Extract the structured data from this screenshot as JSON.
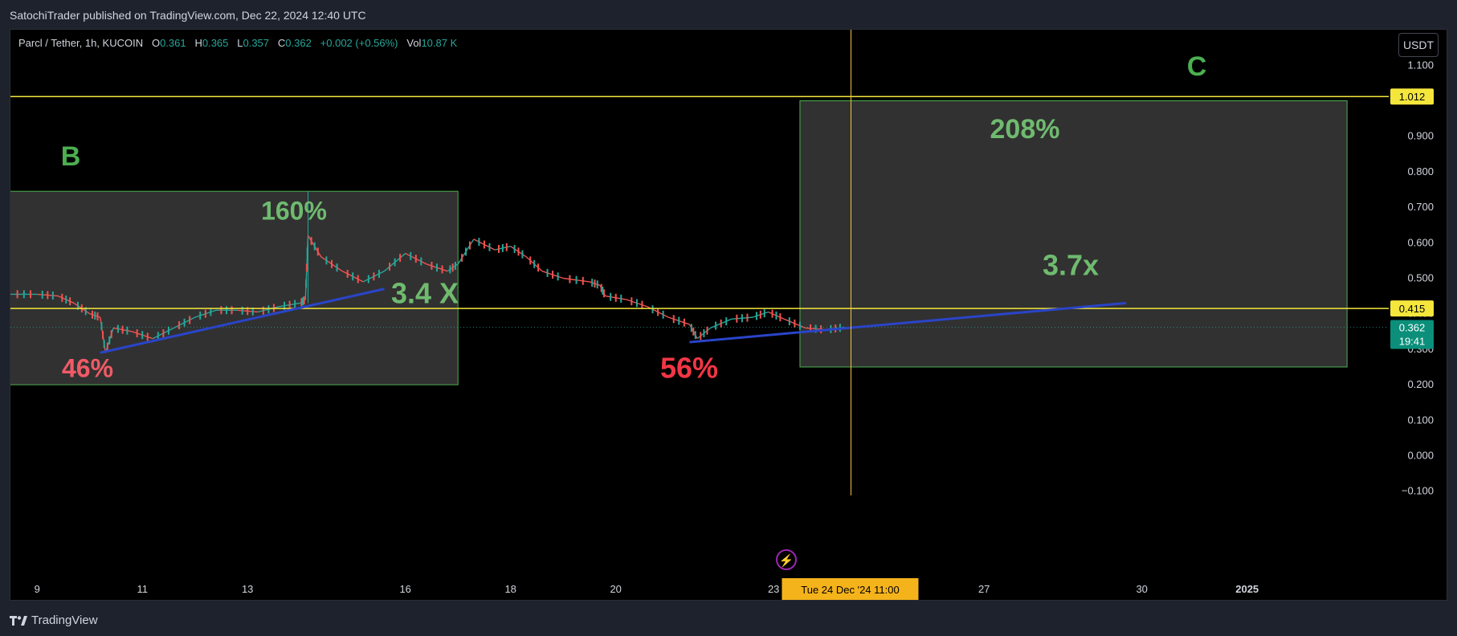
{
  "header": {
    "published": "SatochiTrader published on TradingView.com, Dec 22, 2024 12:40 UTC"
  },
  "legend": {
    "symbol": "Parcl / Tether, 1h, KUCOIN",
    "o_label": "O",
    "o": "0.361",
    "h_label": "H",
    "h": "0.365",
    "l_label": "L",
    "l": "0.357",
    "c_label": "C",
    "c": "0.362",
    "change": "+0.002 (+0.56%)",
    "vol_label": "Vol",
    "vol": "10.87 K"
  },
  "currency_button": "USDT",
  "footer": {
    "brand": "TradingView"
  },
  "colors": {
    "up": "#26a69a",
    "down": "#ef5350",
    "level_line": "#f5e63c",
    "trend_line": "#2a44c9",
    "box_fill": "#363636",
    "box_border": "#4caf50",
    "green_text": "#6fba6f",
    "red_text": "#f23645"
  },
  "chart_data": {
    "type": "line",
    "title": "Parcl / Tether, 1h, KUCOIN",
    "y_ticks": [
      "1.100",
      "1.000",
      "0.900",
      "0.800",
      "0.700",
      "0.600",
      "0.500",
      "0.400",
      "0.300",
      "0.200",
      "0.100",
      "0.000",
      "−0.100"
    ],
    "ylim": [
      -0.1,
      1.1
    ],
    "x_ticks": [
      {
        "label": "9",
        "day": 9
      },
      {
        "label": "11",
        "day": 11
      },
      {
        "label": "13",
        "day": 13
      },
      {
        "label": "16",
        "day": 16
      },
      {
        "label": "18",
        "day": 18
      },
      {
        "label": "20",
        "day": 20
      },
      {
        "label": "23",
        "day": 23
      },
      {
        "label": "27",
        "day": 27
      },
      {
        "label": "30",
        "day": 30
      },
      {
        "label": "2025",
        "day": 32
      }
    ],
    "xlim_days": [
      7.6,
      33.9
    ],
    "price_points": [
      [
        7.6,
        0.47
      ],
      [
        8.0,
        0.475
      ],
      [
        8.5,
        0.455
      ],
      [
        9.0,
        0.455
      ],
      [
        9.4,
        0.45
      ],
      [
        9.7,
        0.43
      ],
      [
        10.0,
        0.4
      ],
      [
        10.2,
        0.39
      ],
      [
        10.3,
        0.29
      ],
      [
        10.45,
        0.36
      ],
      [
        10.8,
        0.35
      ],
      [
        11.2,
        0.33
      ],
      [
        11.6,
        0.36
      ],
      [
        12.0,
        0.39
      ],
      [
        12.4,
        0.41
      ],
      [
        12.8,
        0.41
      ],
      [
        13.2,
        0.405
      ],
      [
        13.6,
        0.42
      ],
      [
        14.0,
        0.43
      ],
      [
        14.1,
        0.44
      ],
      [
        14.15,
        0.62
      ],
      [
        14.4,
        0.56
      ],
      [
        14.8,
        0.52
      ],
      [
        15.2,
        0.49
      ],
      [
        15.6,
        0.52
      ],
      [
        16.0,
        0.57
      ],
      [
        16.4,
        0.54
      ],
      [
        16.8,
        0.52
      ],
      [
        17.0,
        0.54
      ],
      [
        17.3,
        0.61
      ],
      [
        17.7,
        0.58
      ],
      [
        18.0,
        0.59
      ],
      [
        18.3,
        0.56
      ],
      [
        18.6,
        0.52
      ],
      [
        19.0,
        0.5
      ],
      [
        19.5,
        0.49
      ],
      [
        19.7,
        0.48
      ],
      [
        19.8,
        0.45
      ],
      [
        20.2,
        0.44
      ],
      [
        20.6,
        0.42
      ],
      [
        21.0,
        0.39
      ],
      [
        21.4,
        0.37
      ],
      [
        21.55,
        0.33
      ],
      [
        21.8,
        0.36
      ],
      [
        22.2,
        0.385
      ],
      [
        22.6,
        0.39
      ],
      [
        22.9,
        0.405
      ],
      [
        23.2,
        0.385
      ],
      [
        23.6,
        0.36
      ],
      [
        24.0,
        0.355
      ],
      [
        24.35,
        0.362
      ]
    ],
    "horizontal_levels": [
      1.012,
      0.415
    ],
    "last_price": "0.362",
    "countdown": "19:41",
    "level_labels": [
      "1.012",
      "0.415"
    ],
    "crosshair_date": "Tue 24 Dec '24   11:00",
    "annotations": [
      {
        "text": "B",
        "kind": "zone-letter"
      },
      {
        "text": "C",
        "kind": "zone-letter"
      },
      {
        "text": "160%",
        "kind": "gain"
      },
      {
        "text": "208%",
        "kind": "gain"
      },
      {
        "text": "3.4 X",
        "kind": "gain"
      },
      {
        "text": "3.7x",
        "kind": "gain"
      },
      {
        "text": "46%",
        "kind": "drawdown"
      },
      {
        "text": "56%",
        "kind": "drawdown"
      }
    ],
    "boxes": [
      {
        "from_day": 7.6,
        "to_day": 17.0,
        "top": 0.745,
        "bottom": 0.2
      },
      {
        "from_day": 23.5,
        "to_day": 33.9,
        "top": 1.0,
        "bottom": 0.25
      }
    ],
    "trend_lines": [
      {
        "from": [
          10.2,
          0.29
        ],
        "to": [
          15.6,
          0.47
        ]
      },
      {
        "from": [
          21.4,
          0.32
        ],
        "to": [
          29.7,
          0.43
        ]
      }
    ],
    "grid": false
  }
}
